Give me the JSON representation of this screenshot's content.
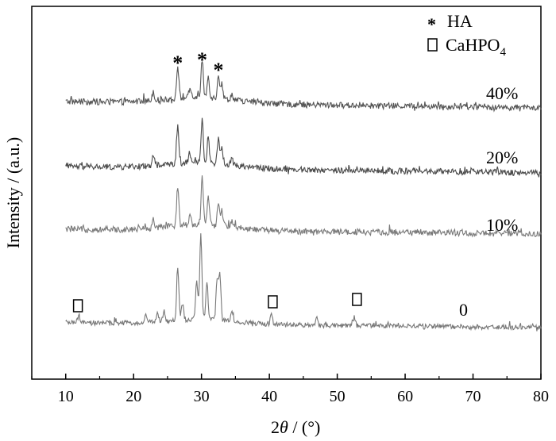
{
  "chart_data": {
    "type": "line",
    "xlabel_parts": [
      "2",
      "θ",
      " / (°)"
    ],
    "ylabel": "Intensity / (a.u.)",
    "xlim": [
      5,
      80
    ],
    "xticks": [
      10,
      20,
      30,
      40,
      50,
      60,
      70,
      80
    ],
    "y_ticks_shown": false,
    "grid": false,
    "legend": {
      "placement": "top-right",
      "entries": [
        {
          "symbol": "*",
          "label": "HA"
        },
        {
          "symbol": "□",
          "label": "CaHPO",
          "subscript": "4"
        }
      ]
    },
    "series": [
      {
        "name": "40%",
        "color": "#555555",
        "peaks": [
          [
            22.9,
            0.14
          ],
          [
            26.5,
            0.48
          ],
          [
            28.3,
            0.12
          ],
          [
            30.1,
            0.55
          ],
          [
            31.0,
            0.32
          ],
          [
            32.5,
            0.36
          ],
          [
            33.0,
            0.22
          ],
          [
            34.5,
            0.08
          ]
        ]
      },
      {
        "name": "20%",
        "color": "#4a4a4a",
        "peaks": [
          [
            22.9,
            0.14
          ],
          [
            26.5,
            0.55
          ],
          [
            28.3,
            0.12
          ],
          [
            30.1,
            0.63
          ],
          [
            31.0,
            0.38
          ],
          [
            32.5,
            0.38
          ],
          [
            33.0,
            0.24
          ],
          [
            34.5,
            0.08
          ]
        ]
      },
      {
        "name": "10%",
        "color": "#7a7a7a",
        "peaks": [
          [
            22.9,
            0.14
          ],
          [
            26.5,
            0.58
          ],
          [
            28.3,
            0.15
          ],
          [
            30.1,
            0.7
          ],
          [
            31.0,
            0.4
          ],
          [
            32.5,
            0.36
          ],
          [
            33.0,
            0.22
          ],
          [
            34.5,
            0.1
          ]
        ]
      },
      {
        "name": "0",
        "color": "#777777",
        "peaks": [
          [
            11.9,
            0.12
          ],
          [
            21.8,
            0.12
          ],
          [
            23.5,
            0.15
          ],
          [
            24.5,
            0.18
          ],
          [
            26.5,
            1.0
          ],
          [
            27.2,
            0.3
          ],
          [
            29.3,
            0.72
          ],
          [
            29.9,
            1.6
          ],
          [
            30.8,
            0.68
          ],
          [
            32.3,
            0.75
          ],
          [
            32.7,
            0.85
          ],
          [
            34.5,
            0.2
          ],
          [
            40.3,
            0.18
          ],
          [
            47.0,
            0.12
          ],
          [
            52.5,
            0.16
          ]
        ]
      }
    ],
    "annotations": [
      {
        "symbol": "*",
        "near": 26.5,
        "series": "40%"
      },
      {
        "symbol": "*",
        "near": 30.1,
        "series": "40%"
      },
      {
        "symbol": "*",
        "near": 32.5,
        "series": "40%"
      },
      {
        "symbol": "□",
        "near": 11.8,
        "series": "0"
      },
      {
        "symbol": "□",
        "near": 40.5,
        "series": "0"
      },
      {
        "symbol": "□",
        "near": 52.9,
        "series": "0"
      }
    ]
  }
}
